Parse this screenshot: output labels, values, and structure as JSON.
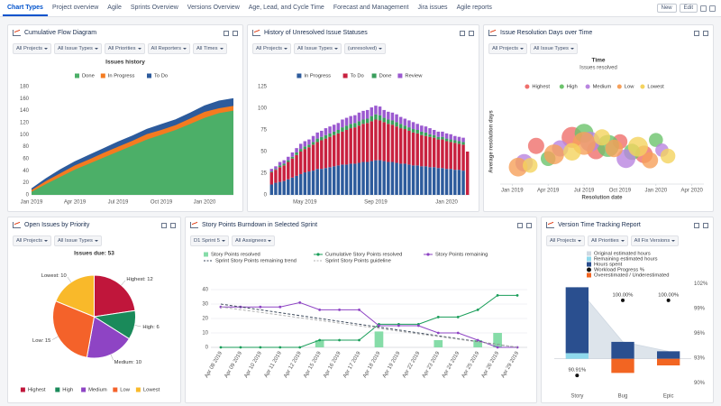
{
  "tabs": [
    "Chart Types",
    "Project overview",
    "Agile",
    "Sprints Overview",
    "Versions Overview",
    "Age, Lead, and Cycle Time",
    "Forecast and Management",
    "Jira issues",
    "Agile reports"
  ],
  "toolbar_buttons": [
    "New",
    "Edit"
  ],
  "panels": [
    {
      "filters": [
        "All Projects",
        "All Issue Types",
        "All Priorities",
        "All Reporters",
        "All Times"
      ]
    },
    {
      "filters": [
        "All Projects",
        "All Issue Types",
        "(unresolved)"
      ]
    },
    {
      "filters": [
        "All Projects",
        "All Issue Types"
      ]
    },
    {
      "filters": [
        "All Projects",
        "All Issue Types"
      ]
    },
    {
      "filters": [
        "D1 Sprint 5",
        "All Assignees"
      ]
    },
    {
      "filters": [
        "All Projects",
        "All Priorities",
        "All Fix Versions"
      ]
    }
  ],
  "chart_data": [
    {
      "type": "area",
      "title": "Cumulative Flow Diagram",
      "subtitle": "Issues history",
      "categories": [
        "Jan 2019",
        null,
        null,
        "Apr 2019",
        null,
        null,
        "Jul 2019",
        null,
        null,
        "Oct 2019",
        null,
        null,
        "Jan 2020",
        null,
        null
      ],
      "series": [
        {
          "name": "Done",
          "color": "#4caf68",
          "values": [
            5,
            18,
            30,
            42,
            52,
            62,
            72,
            82,
            92,
            100,
            108,
            118,
            128,
            136,
            140
          ]
        },
        {
          "name": "In Progress",
          "color": "#f47b20",
          "values": [
            3,
            5,
            6,
            7,
            7,
            8,
            8,
            8,
            9,
            8,
            8,
            9,
            10,
            8,
            8
          ]
        },
        {
          "name": "To Do",
          "color": "#2d5b9c",
          "values": [
            2,
            4,
            6,
            6,
            7,
            7,
            8,
            8,
            8,
            9,
            9,
            9,
            10,
            12,
            12
          ]
        }
      ],
      "ylim": [
        0,
        180
      ],
      "yticks": [
        0,
        20,
        40,
        60,
        80,
        100,
        120,
        140,
        160,
        180
      ],
      "grid": false
    },
    {
      "type": "bar",
      "stacked": true,
      "title": "History of Unresolved Issue Statuses",
      "categories": [
        null,
        null,
        null,
        null,
        null,
        null,
        null,
        null,
        "May 2019",
        null,
        null,
        null,
        null,
        null,
        null,
        null,
        null,
        null,
        null,
        null,
        null,
        null,
        null,
        null,
        null,
        "Sep 2019",
        null,
        null,
        null,
        null,
        null,
        null,
        null,
        null,
        null,
        null,
        null,
        null,
        null,
        null,
        null,
        null,
        "Jan 2020",
        null,
        null,
        null,
        null,
        null
      ],
      "series": [
        {
          "name": "In Progress",
          "color": "#2d5b9c",
          "values": [
            12,
            14,
            15,
            16,
            18,
            20,
            22,
            24,
            26,
            27,
            28,
            30,
            30,
            31,
            32,
            33,
            34,
            35,
            35,
            36,
            36,
            37,
            38,
            38,
            39,
            40,
            40,
            39,
            38,
            38,
            37,
            36,
            36,
            35,
            34,
            34,
            33,
            33,
            32,
            32,
            31,
            31,
            30,
            30,
            29,
            29,
            28,
            0
          ]
        },
        {
          "name": "To Do",
          "color": "#c8213f",
          "values": [
            14,
            15,
            17,
            18,
            20,
            22,
            24,
            26,
            27,
            28,
            30,
            31,
            33,
            34,
            35,
            36,
            37,
            38,
            40,
            41,
            42,
            43,
            44,
            45,
            46,
            47,
            46,
            45,
            44,
            43,
            42,
            41,
            40,
            39,
            38,
            37,
            36,
            35,
            35,
            34,
            33,
            33,
            32,
            31,
            31,
            30,
            30,
            50
          ]
        },
        {
          "name": "Done",
          "color": "#3a9e5c",
          "values": [
            1,
            1,
            2,
            2,
            2,
            2,
            3,
            3,
            3,
            3,
            3,
            4,
            4,
            4,
            4,
            4,
            4,
            5,
            5,
            5,
            5,
            5,
            5,
            5,
            6,
            6,
            6,
            5,
            5,
            5,
            5,
            5,
            4,
            4,
            4,
            4,
            4,
            4,
            3,
            3,
            3,
            3,
            3,
            3,
            3,
            3,
            3,
            0
          ]
        },
        {
          "name": "Review",
          "color": "#9b59d0",
          "values": [
            3,
            3,
            4,
            4,
            4,
            5,
            5,
            6,
            6,
            6,
            7,
            7,
            7,
            8,
            8,
            8,
            8,
            9,
            9,
            9,
            9,
            10,
            10,
            10,
            10,
            10,
            10,
            9,
            9,
            9,
            9,
            8,
            8,
            8,
            8,
            7,
            7,
            7,
            7,
            6,
            6,
            6,
            6,
            6,
            5,
            5,
            5,
            0
          ]
        }
      ],
      "ylim": [
        0,
        125
      ],
      "yticks": [
        0,
        25,
        50,
        75,
        100,
        125
      ],
      "grid": false
    },
    {
      "type": "bubble",
      "title": "Issue Resolution Days over Time",
      "heading": "Time",
      "subtitle": "Issues resolved",
      "xlabel": "Resolution date",
      "ylabel": "Average resolution days",
      "xlim": [
        -1,
        16
      ],
      "xticks": [
        {
          "value": 0,
          "label": "Jan 2019"
        },
        {
          "value": 3,
          "label": "Apr 2019"
        },
        {
          "value": 6,
          "label": "Jul 2019"
        },
        {
          "value": 9,
          "label": "Oct 2019"
        },
        {
          "value": 12,
          "label": "Jan 2020"
        },
        {
          "value": 15,
          "label": "Apr 2020"
        }
      ],
      "ylim": [
        0,
        100
      ],
      "series": [
        {
          "name": "Highest",
          "color": "#ef6f6c",
          "x": [
            2,
            5,
            7,
            9,
            11
          ],
          "values": [
            45,
            55,
            40,
            50,
            35
          ],
          "sizes": [
            12,
            20,
            15,
            10,
            14
          ]
        },
        {
          "name": "High",
          "color": "#6cc36c",
          "x": [
            3,
            6,
            8,
            10,
            12
          ],
          "values": [
            30,
            60,
            45,
            38,
            52
          ],
          "sizes": [
            10,
            16,
            22,
            12,
            9
          ]
        },
        {
          "name": "Medium",
          "color": "#b985e0",
          "x": [
            1,
            4,
            6.5,
            9.5,
            12.5
          ],
          "values": [
            25,
            42,
            50,
            30,
            40
          ],
          "sizes": [
            14,
            12,
            18,
            16,
            8
          ]
        },
        {
          "name": "Low",
          "color": "#f6a05a",
          "x": [
            0.5,
            3.5,
            6,
            8.5,
            11.5
          ],
          "values": [
            20,
            35,
            48,
            42,
            28
          ],
          "sizes": [
            16,
            18,
            24,
            14,
            12
          ]
        },
        {
          "name": "Lowest",
          "color": "#f4d35e",
          "x": [
            1.5,
            5,
            7.5,
            10.5,
            13
          ],
          "values": [
            22,
            38,
            55,
            44,
            33
          ],
          "sizes": [
            10,
            14,
            12,
            18,
            10
          ]
        }
      ]
    },
    {
      "type": "pie",
      "title": "Open Issues by Priority",
      "subtitle": "Issues due: 53",
      "categories": [
        "Highest",
        "High",
        "Medium",
        "Low",
        "Lowest"
      ],
      "values": [
        12,
        6,
        10,
        15,
        10
      ],
      "value_labels": [
        "Highest: 12",
        "High: 6",
        "Medium: 10",
        "Low: 15",
        "Lowest: 10"
      ],
      "colors": [
        "#c0163b",
        "#1a8a5a",
        "#8e44c4",
        "#f4622a",
        "#f9b92a"
      ]
    },
    {
      "type": "combo",
      "stacked": false,
      "title": "Story Points Burndown in Selected Sprint",
      "categories": [
        "Apr 08 2019",
        "Apr 09 2019",
        "Apr 10 2019",
        "Apr 11 2019",
        "Apr 12 2019",
        "Apr 15 2019",
        "Apr 16 2019",
        "Apr 17 2019",
        "Apr 18 2019",
        "Apr 19 2019",
        "Apr 22 2019",
        "Apr 23 2019",
        "Apr 24 2019",
        "Apr 25 2019",
        "Apr 26 2019",
        "Apr 29 2019"
      ],
      "series": [
        {
          "name": "Story Points resolved",
          "type": "bar",
          "color": "#86dca8",
          "values": [
            0,
            0,
            0,
            0,
            0,
            5,
            0,
            0,
            11,
            0,
            0,
            5,
            0,
            5,
            10,
            0
          ]
        },
        {
          "name": "Cumulative Story Points resolved",
          "type": "line",
          "markers": true,
          "color": "#1a9e5a",
          "values": [
            0,
            0,
            0,
            0,
            0,
            5,
            5,
            5,
            16,
            16,
            16,
            21,
            21,
            26,
            36,
            36
          ]
        },
        {
          "name": "Story Points remaining",
          "type": "line",
          "markers": true,
          "color": "#8e44c4",
          "values": [
            28,
            28,
            28,
            28,
            31,
            26,
            26,
            26,
            15,
            15,
            15,
            10,
            10,
            5,
            0,
            0
          ]
        },
        {
          "name": "Sprint Story Points remaining trend",
          "type": "line",
          "dashed": true,
          "color": "#3d4a5c",
          "values": [
            30,
            28,
            26,
            24,
            22,
            20,
            18,
            16,
            14,
            12,
            10,
            8,
            6,
            4,
            2,
            0
          ]
        },
        {
          "name": "Sprint Story Points guideline",
          "type": "line",
          "dashed": true,
          "color": "#b0b0b0",
          "values": [
            28,
            26.1,
            24.3,
            22.4,
            20.5,
            18.7,
            16.8,
            14.9,
            13.1,
            11.2,
            9.3,
            7.5,
            5.6,
            3.7,
            1.9,
            0
          ]
        }
      ],
      "ylim": [
        0,
        45
      ],
      "yticks": [
        0,
        10,
        20,
        30,
        40
      ],
      "grid": true
    },
    {
      "type": "combo",
      "stacked": true,
      "title": "Version Time Tracking Report",
      "categories": [
        "Story",
        "Bug",
        "Epic"
      ],
      "series": [
        {
          "name": "Original estimated hours",
          "type": "area",
          "color": "#cfd8e2",
          "values": [
            76,
            18,
            8
          ]
        },
        {
          "name": "Remaining estimated hours",
          "type": "bar",
          "color": "#8fd9ec",
          "values": [
            6,
            0,
            0
          ]
        },
        {
          "name": "Hours spent",
          "type": "bar",
          "color": "#2a4f8f",
          "values": [
            70,
            18,
            8
          ]
        },
        {
          "name": "Workload Progress %",
          "type": "scatter",
          "axis": "y2",
          "color": "#111111",
          "values": [
            90.91,
            100,
            100
          ],
          "value_labels": [
            "90.91%",
            "100.00%",
            "100.00%"
          ]
        },
        {
          "name": "Overestimated / Underestimated",
          "type": "bar",
          "color": "#f26522",
          "values": [
            0,
            -15,
            -7
          ]
        }
      ],
      "ylim": [
        -30,
        85
      ],
      "y2lim": [
        89.5,
        102.6
      ],
      "y2ticks": [
        {
          "value": 102,
          "label": "102%"
        },
        {
          "value": 99,
          "label": "99%"
        },
        {
          "value": 96,
          "label": "96%"
        },
        {
          "value": 93,
          "label": "93%"
        },
        {
          "value": 90,
          "label": "90%"
        }
      ],
      "grid": false
    }
  ]
}
